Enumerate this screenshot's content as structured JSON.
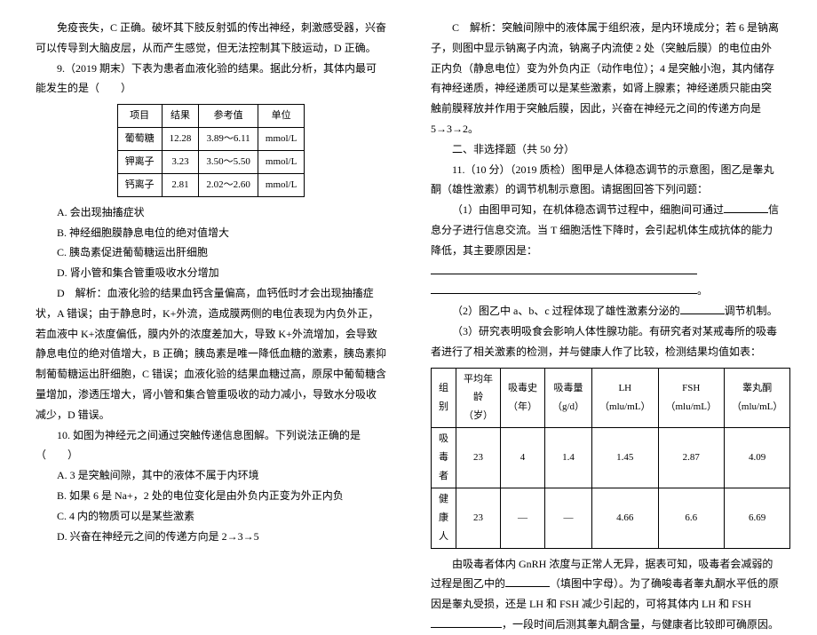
{
  "left": {
    "p1": "免疫丧失，C 正确。破坏其下肢反射弧的传出神经，刺激感受器，兴奋可以传导到大脑皮层，从而产生感觉，但无法控制其下肢运动，D 正确。",
    "q9": "9.（2019 期末）下表为患者血液化验的结果。据此分析，其体内最可能发生的是（　　）",
    "table1": {
      "headers": [
        "项目",
        "结果",
        "参考值",
        "单位"
      ],
      "rows": [
        [
          "葡萄糖",
          "12.28",
          "3.89～6.11",
          "mmol/L"
        ],
        [
          "钾离子",
          "3.23",
          "3.50～5.50",
          "mmol/L"
        ],
        [
          "钙离子",
          "2.81",
          "2.02～2.60",
          "mmol/L"
        ]
      ]
    },
    "optA": "A. 会出现抽搐症状",
    "optB": "B. 神经细胞膜静息电位的绝对值增大",
    "optC": "C. 胰岛素促进葡萄糖运出肝细胞",
    "optD": "D. 肾小管和集合管重吸收水分增加",
    "expD": "D　解析：血液化验的结果血钙含量偏高，血钙低时才会出现抽搐症状，A 错误；由于静息时，K+外流，造成膜两侧的电位表现为内负外正，若血液中 K+浓度偏低，膜内外的浓度差加大，导致 K+外流增加，会导致静息电位的绝对值增大，B 正确；胰岛素是唯一降低血糖的激素，胰岛素抑制葡萄糖运出肝细胞，C 错误；血液化验的结果血糖过高，原尿中葡萄糖含量增加，渗透压增大，肾小管和集合管重吸收的动力减小，导致水分吸收减少，D 错误。",
    "q10": "10. 如图为神经元之间通过突触传递信息图解。下列说法正确的是（　　）",
    "opt10A": "A. 3 是突触间隙，其中的液体不属于内环境",
    "opt10B": "B. 如果 6 是 Na+，2 处的电位变化是由外负内正变为外正内负",
    "opt10C": "C. 4 内的物质可以是某些激素",
    "opt10D": "D. 兴奋在神经元之间的传递方向是 2→3→5"
  },
  "right": {
    "expC": "C　解析：突触间隙中的液体属于组织液，是内环境成分；若 6 是钠离子，则图中显示钠离子内流，钠离子内流使 2 处（突触后膜）的电位由外正内负（静息电位）变为外负内正（动作电位）；4 是突触小泡，其内储存有神经递质，神经递质可以是某些激素，如肾上腺素；神经递质只能由突触前膜释放并作用于突触后膜，因此，兴奋在神经元之间的传递方向是 5→3→2。",
    "sec2": "二、非选择题（共 50 分）",
    "q11": "11.（10 分）（2019 质检）图甲是人体稳态调节的示意图，图乙是睾丸酮（雄性激素）的调节机制示意图。请据图回答下列问题：",
    "q11_1a": "（1）由图甲可知，在机体稳态调节过程中，细胞间可通过",
    "q11_1b": "信息分子进行信息交流。当 T 细胞活性下降时，会引起机体生成抗体的能力降低，其主要原因是：",
    "q11_1c": "。",
    "q11_2a": "（2）图乙中 a、b、c 过程体现了雄性激素分泌的",
    "q11_2b": "调节机制。",
    "q11_3": "（3）研究表明吸食会影响人体性腺功能。有研究者对某戒毒所的吸毒者进行了相关激素的检测，并与健康人作了比较，检测结果均值如表：",
    "table2": {
      "headers": [
        "组别",
        "平均年龄（岁）",
        "吸毒史（年）",
        "吸毒量（g/d）",
        "LH（mlu/mL）",
        "FSH（mlu/mL）",
        "睾丸酮（mlu/mL）"
      ],
      "rows": [
        [
          "吸毒者",
          "23",
          "4",
          "1.4",
          "1.45",
          "2.87",
          "4.09"
        ],
        [
          "健康人",
          "23",
          "—",
          "—",
          "4.66",
          "6.6",
          "6.69"
        ]
      ]
    },
    "p_end1a": "由吸毒者体内 GnRH 浓度与正常人无异，据表可知，吸毒者会减弱的过程是图乙中的",
    "p_end1b": "（填图中字母）。为了确唆毒者睾丸酮水平低的原因是睾丸受损，还是 LH 和 FSH 减少引起的，可将其体内 LH 和 FSH",
    "p_end1c": "，一段时间后测其睾丸酮含量，与健康者比较即可确原因。"
  }
}
